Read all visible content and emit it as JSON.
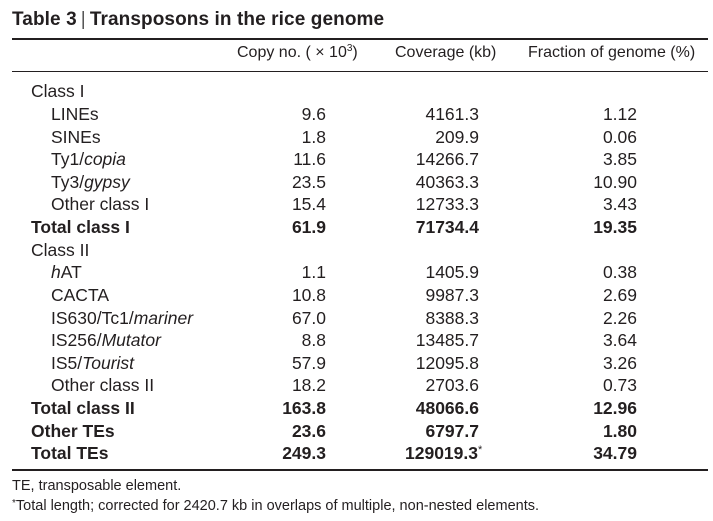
{
  "table": {
    "title_prefix": "Table 3",
    "title_sep": "|",
    "title_text": "Transposons in the rice genome",
    "headers": {
      "copy_base": "Copy no. ( × 10",
      "copy_exp": "3",
      "copy_close": ")",
      "coverage": "Coverage (kb)",
      "fraction": "Fraction of genome (%)"
    },
    "rows": {
      "class1": {
        "label": "Class I"
      },
      "lines": {
        "label": "LINEs",
        "copy": "9.6",
        "coverage": "4161.3",
        "fraction": "1.12"
      },
      "sines": {
        "label": "SINEs",
        "copy": "1.8",
        "coverage": "209.9",
        "fraction": "0.06"
      },
      "ty1": {
        "label_a": "Ty1/",
        "label_b": "copia",
        "copy": "11.6",
        "coverage": "14266.7",
        "fraction": "3.85"
      },
      "ty3": {
        "label_a": "Ty3/",
        "label_b": "gypsy",
        "copy": "23.5",
        "coverage": "40363.3",
        "fraction": "10.90"
      },
      "other1": {
        "label": "Other class I",
        "copy": "15.4",
        "coverage": "12733.3",
        "fraction": "3.43"
      },
      "total1": {
        "label": "Total class I",
        "copy": "61.9",
        "coverage": "71734.4",
        "fraction": "19.35"
      },
      "class2": {
        "label": "Class II"
      },
      "hat": {
        "label_a": "h",
        "label_b": "AT",
        "copy": "1.1",
        "coverage": "1405.9",
        "fraction": "0.38"
      },
      "cacta": {
        "label": "CACTA",
        "copy": "10.8",
        "coverage": "9987.3",
        "fraction": "2.69"
      },
      "is630": {
        "label_a": "IS630/Tc1/",
        "label_b": "mariner",
        "copy": "67.0",
        "coverage": "8388.3",
        "fraction": "2.26"
      },
      "is256": {
        "label_a": "IS256/",
        "label_b": "Mutator",
        "copy": "8.8",
        "coverage": "13485.7",
        "fraction": "3.64"
      },
      "is5": {
        "label_a": "IS5/",
        "label_b": "Tourist",
        "copy": "57.9",
        "coverage": "12095.8",
        "fraction": "3.26"
      },
      "other2": {
        "label": "Other class II",
        "copy": "18.2",
        "coverage": "2703.6",
        "fraction": "0.73"
      },
      "total2": {
        "label": "Total class II",
        "copy": "163.8",
        "coverage": "48066.6",
        "fraction": "12.96"
      },
      "othertes": {
        "label": "Other TEs",
        "copy": "23.6",
        "coverage": "6797.7",
        "fraction": "1.80"
      },
      "totaltes": {
        "label": "Total TEs",
        "copy": "249.3",
        "coverage": "129019.3",
        "coverage_mark": "*",
        "fraction": "34.79"
      }
    },
    "footnotes": {
      "abbrev": "TE, transposable element.",
      "star_mark": "*",
      "star_text": "Total length; corrected for 2420.7 kb in overlaps of multiple, non-nested elements."
    }
  }
}
